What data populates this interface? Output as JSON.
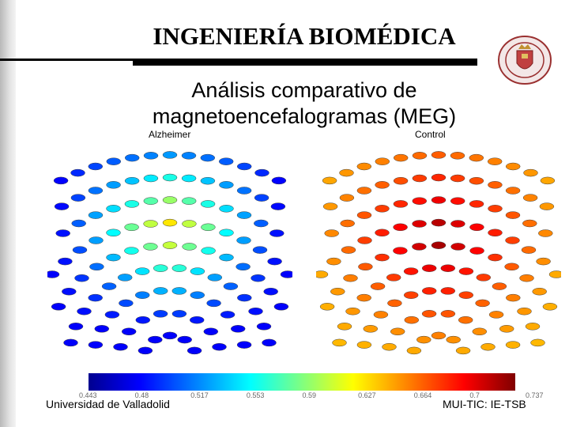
{
  "header": {
    "title": "INGENIERÍA BIOMÉDICA"
  },
  "slide": {
    "subtitle_line1": "Análisis comparativo de",
    "subtitle_line2": "magnetoencefalogramas (MEG)"
  },
  "panels": {
    "left_label": "Alzheimer",
    "right_label": "Control"
  },
  "colorbar": {
    "tick_labels": [
      "0.443",
      "0.48",
      "0.517",
      "0.553",
      "0.59",
      "0.627",
      "0.664",
      "0.7",
      "0.737"
    ],
    "colors": [
      "#00008f",
      "#0000ff",
      "#0080ff",
      "#00ffff",
      "#80ff80",
      "#ffff00",
      "#ff8000",
      "#ff0000",
      "#800000"
    ]
  },
  "footer": {
    "left": "Universidad de Valladolid",
    "right": "MUI-TIC: IE-TSB"
  },
  "icons": {
    "seal": "university-seal-icon"
  }
}
